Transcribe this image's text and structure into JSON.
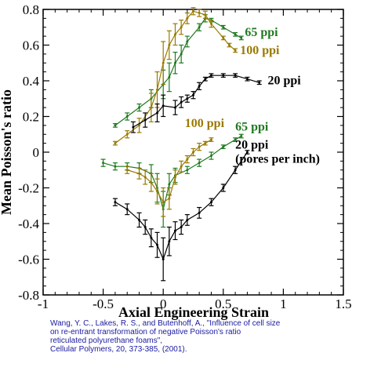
{
  "chart_data": {
    "type": "scatter",
    "xlabel": "Axial Engineering Strain",
    "ylabel": "Mean Poisson's ratio",
    "xlim": [
      -1,
      1.5
    ],
    "ylim": [
      -0.8,
      0.8
    ],
    "x_ticks": [
      "-1",
      "-0.5",
      "0",
      "0.5",
      "1",
      "1.5"
    ],
    "y_ticks": [
      "-0.8",
      "-0.6",
      "-0.4",
      "-0.2",
      "0",
      "0.2",
      "0.4",
      "0.6",
      "0.8"
    ],
    "error_bars": true,
    "series_labels": [
      {
        "text": "65 ppi",
        "color": "#1f7a1f",
        "x": 0.68,
        "y": 0.65
      },
      {
        "text": "100 ppi",
        "color": "#9a7a00",
        "x": 0.64,
        "y": 0.55
      },
      {
        "text": "20 ppi",
        "color": "#000000",
        "x": 0.87,
        "y": 0.38
      },
      {
        "text": "100 ppi",
        "color": "#9a7a00",
        "x": 0.18,
        "y": 0.14
      },
      {
        "text": "65 ppi",
        "color": "#1f7a1f",
        "x": 0.6,
        "y": 0.12
      },
      {
        "text": "20 ppi",
        "color": "#000000",
        "x": 0.6,
        "y": 0.02
      },
      {
        "text": "(pores per inch)",
        "color": "#000000",
        "x": 0.6,
        "y": -0.06
      }
    ],
    "series": [
      {
        "name": "65 ppi",
        "color": "#1f7a1f",
        "x": [
          -0.4,
          -0.3,
          -0.2,
          -0.1,
          0.0,
          0.05,
          0.1,
          0.15,
          0.2,
          0.3,
          0.35,
          0.4,
          0.5,
          0.6,
          0.65
        ],
        "y": [
          0.15,
          0.2,
          0.25,
          0.3,
          0.38,
          0.42,
          0.5,
          0.55,
          0.62,
          0.7,
          0.75,
          0.74,
          0.7,
          0.66,
          0.64
        ],
        "err": [
          0.01,
          0.02,
          0.02,
          0.05,
          0.08,
          0.08,
          0.06,
          0.05,
          0.03,
          0.02,
          0.02,
          0.01,
          0.01,
          0.01,
          0.01
        ]
      },
      {
        "name": "100 ppi",
        "color": "#9a7a00",
        "x": [
          -0.4,
          -0.3,
          -0.2,
          -0.1,
          -0.05,
          0.0,
          0.05,
          0.1,
          0.15,
          0.2,
          0.25,
          0.3,
          0.35,
          0.4,
          0.5,
          0.55,
          0.6
        ],
        "y": [
          0.05,
          0.1,
          0.15,
          0.25,
          0.35,
          0.5,
          0.6,
          0.66,
          0.7,
          0.75,
          0.79,
          0.78,
          0.77,
          0.72,
          0.64,
          0.6,
          0.57
        ],
        "err": [
          0.01,
          0.02,
          0.04,
          0.08,
          0.1,
          0.12,
          0.08,
          0.06,
          0.04,
          0.03,
          0.02,
          0.02,
          0.02,
          0.02,
          0.01,
          0.01,
          0.01
        ]
      },
      {
        "name": "20 ppi",
        "color": "#000000",
        "x": [
          -0.25,
          -0.15,
          -0.05,
          0.0,
          0.1,
          0.15,
          0.2,
          0.25,
          0.3,
          0.35,
          0.4,
          0.5,
          0.6,
          0.7,
          0.8
        ],
        "y": [
          0.14,
          0.18,
          0.22,
          0.26,
          0.25,
          0.28,
          0.3,
          0.32,
          0.37,
          0.41,
          0.43,
          0.43,
          0.43,
          0.41,
          0.39
        ],
        "err": [
          0.03,
          0.04,
          0.05,
          0.06,
          0.04,
          0.03,
          0.02,
          0.02,
          0.02,
          0.01,
          0.01,
          0.01,
          0.01,
          0.01,
          0.01
        ]
      },
      {
        "name": "65 ppi",
        "color": "#1f7a1f",
        "x": [
          -0.5,
          -0.4,
          -0.3,
          -0.2,
          -0.1,
          -0.05,
          0.0,
          0.05,
          0.1,
          0.2,
          0.3,
          0.4,
          0.5,
          0.6,
          0.65
        ],
        "y": [
          -0.06,
          -0.08,
          -0.08,
          -0.09,
          -0.12,
          -0.2,
          -0.32,
          -0.18,
          -0.13,
          -0.1,
          -0.06,
          -0.02,
          0.03,
          0.07,
          0.09
        ],
        "err": [
          0.02,
          0.02,
          0.02,
          0.03,
          0.05,
          0.08,
          0.1,
          0.06,
          0.04,
          0.02,
          0.02,
          0.02,
          0.01,
          0.01,
          0.01
        ]
      },
      {
        "name": "100 ppi",
        "color": "#9a7a00",
        "x": [
          -0.3,
          -0.2,
          -0.15,
          -0.1,
          -0.05,
          0.0,
          0.05,
          0.1,
          0.15,
          0.2,
          0.25,
          0.3,
          0.35,
          0.4
        ],
        "y": [
          -0.1,
          -0.12,
          -0.14,
          -0.17,
          -0.22,
          -0.28,
          -0.26,
          -0.14,
          -0.08,
          -0.04,
          0.0,
          0.03,
          0.05,
          0.07
        ],
        "err": [
          0.02,
          0.03,
          0.04,
          0.05,
          0.07,
          0.08,
          0.06,
          0.04,
          0.03,
          0.02,
          0.02,
          0.02,
          0.01,
          0.01
        ]
      },
      {
        "name": "20 ppi",
        "color": "#000000",
        "x": [
          -0.4,
          -0.3,
          -0.2,
          -0.15,
          -0.1,
          -0.05,
          0.0,
          0.05,
          0.1,
          0.15,
          0.2,
          0.3,
          0.4,
          0.5,
          0.6,
          0.7
        ],
        "y": [
          -0.28,
          -0.32,
          -0.38,
          -0.42,
          -0.48,
          -0.52,
          -0.6,
          -0.5,
          -0.44,
          -0.42,
          -0.38,
          -0.34,
          -0.28,
          -0.2,
          -0.1,
          0.0
        ],
        "err": [
          0.02,
          0.03,
          0.04,
          0.04,
          0.05,
          0.07,
          0.12,
          0.08,
          0.05,
          0.04,
          0.03,
          0.03,
          0.02,
          0.02,
          0.02,
          0.01
        ]
      }
    ]
  },
  "citation": {
    "line1": "Wang, Y. C., Lakes, R. S., and Butenhoff, A., \"Influence of cell size",
    "line2": "on re-entrant transformation of negative Poisson's ratio",
    "line3": "reticulated polyurethane foams\",",
    "line4": "Cellular Polymers, 20, 373-385,  (2001)."
  },
  "colors": {
    "green": "#1f7a1f",
    "gold": "#9a7a00",
    "black": "#000000",
    "citation": "#1a1aa0"
  }
}
